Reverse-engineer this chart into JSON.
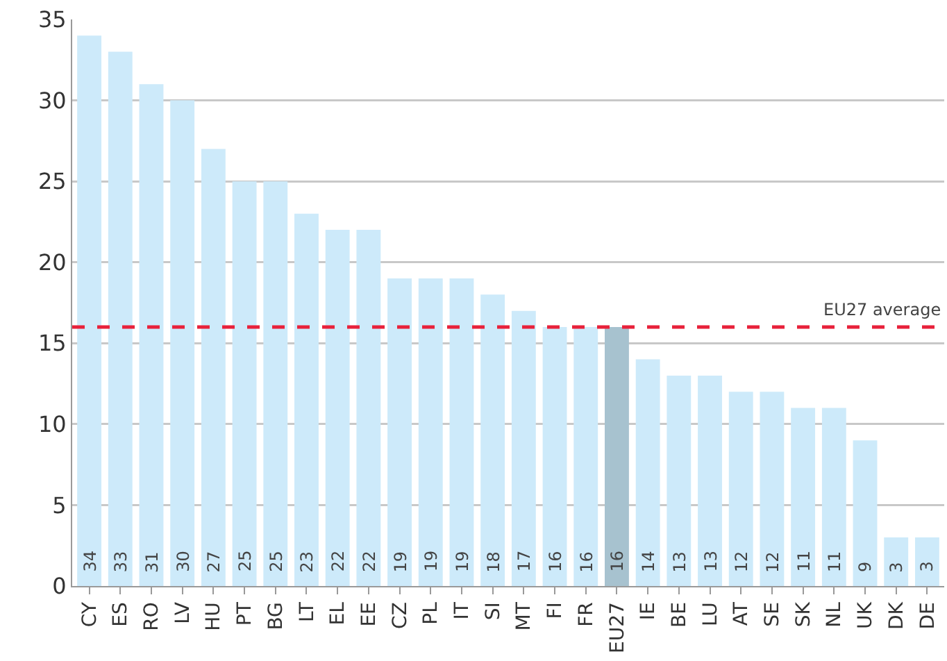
{
  "chart_data": {
    "type": "bar",
    "categories": [
      "CY",
      "ES",
      "RO",
      "LV",
      "HU",
      "PT",
      "BG",
      "LT",
      "EL",
      "EE",
      "CZ",
      "PL",
      "IT",
      "SI",
      "MT",
      "FI",
      "FR",
      "EU27",
      "IE",
      "BE",
      "LU",
      "AT",
      "SE",
      "SK",
      "NL",
      "UK",
      "DK",
      "DE"
    ],
    "values": [
      34,
      33,
      31,
      30,
      27,
      25,
      25,
      23,
      22,
      22,
      19,
      19,
      19,
      18,
      17,
      16,
      16,
      16,
      14,
      13,
      13,
      12,
      12,
      11,
      11,
      9,
      3,
      3
    ],
    "colors": [
      "#cdeafa",
      "#cdeafa",
      "#cdeafa",
      "#cdeafa",
      "#cdeafa",
      "#cdeafa",
      "#cdeafa",
      "#cdeafa",
      "#cdeafa",
      "#cdeafa",
      "#cdeafa",
      "#cdeafa",
      "#cdeafa",
      "#cdeafa",
      "#cdeafa",
      "#cdeafa",
      "#cdeafa",
      "#a7c2cf",
      "#cdeafa",
      "#cdeafa",
      "#cdeafa",
      "#cdeafa",
      "#cdeafa",
      "#cdeafa",
      "#cdeafa",
      "#cdeafa",
      "#cdeafa",
      "#cdeafa"
    ],
    "data_labels": true,
    "ylim": [
      0,
      35
    ],
    "yticks": [
      0,
      5,
      10,
      15,
      20,
      25,
      30,
      35
    ],
    "grid": "y",
    "ref_lines": [
      {
        "axis": "y",
        "value": 16,
        "label": "EU27 average",
        "color": "#e8213a",
        "line_style": "dashed"
      }
    ]
  }
}
